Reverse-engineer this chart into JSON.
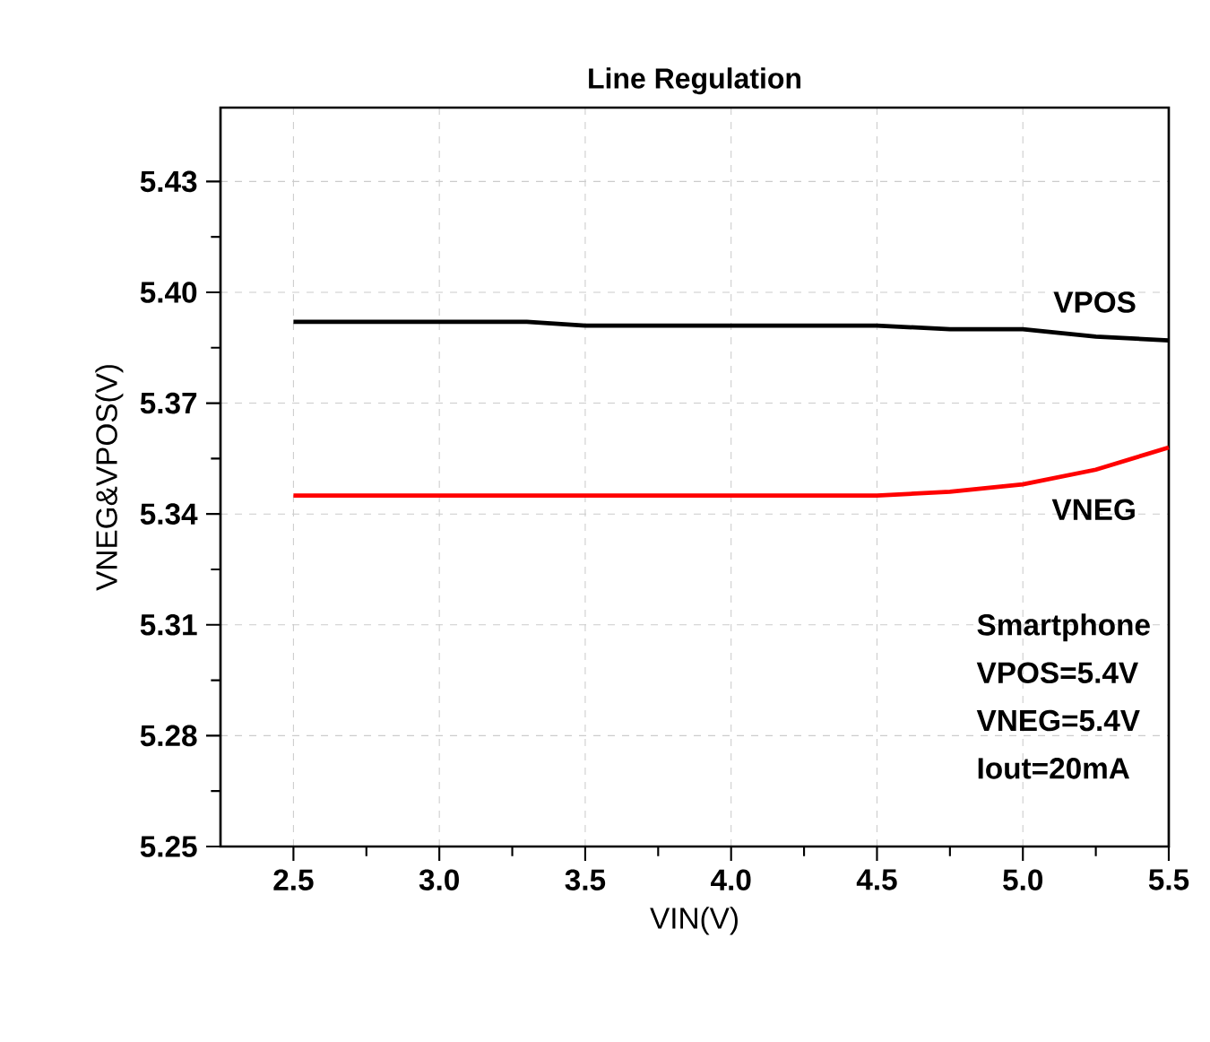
{
  "chart_data": {
    "type": "line",
    "title": "Line Regulation",
    "xlabel": "VIN(V)",
    "ylabel": "VNEG&VPOS(V)",
    "x": [
      2.5,
      3.0,
      3.3,
      3.5,
      4.0,
      4.5,
      4.75,
      5.0,
      5.25,
      5.5
    ],
    "series": [
      {
        "name": "VPOS",
        "color": "#000000",
        "values": [
          5.392,
          5.392,
          5.392,
          5.391,
          5.391,
          5.391,
          5.39,
          5.39,
          5.388,
          5.387
        ]
      },
      {
        "name": "VNEG",
        "color": "#ff0000",
        "values": [
          5.345,
          5.345,
          5.345,
          5.345,
          5.345,
          5.345,
          5.346,
          5.348,
          5.352,
          5.358
        ]
      }
    ],
    "xlim": [
      2.25,
      5.5
    ],
    "ylim": [
      5.25,
      5.45
    ],
    "xticks": [
      2.5,
      {
        "value": 3,
        "label": "3.0"
      },
      3.5,
      {
        "value": 4,
        "label": "4.0"
      },
      4.5,
      {
        "value": 5,
        "label": "5.0"
      },
      5.5
    ],
    "yticks": [
      5.25,
      5.28,
      5.31,
      5.34,
      5.37,
      {
        "value": 5.4,
        "label": "5.40"
      },
      5.43
    ],
    "grid": true,
    "legend": false,
    "line_style": "solid",
    "marker": "none",
    "annotations": [
      "Smartphone",
      "VPOS=5.4V",
      "VNEG=5.4V",
      "Iout=20mA"
    ]
  }
}
